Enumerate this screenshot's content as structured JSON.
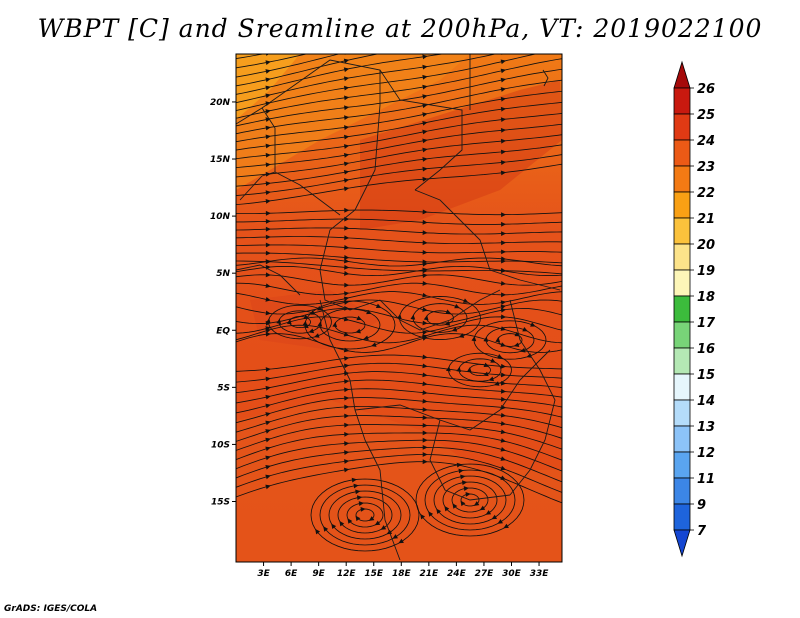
{
  "title": "WBPT [C] and Sreamline at 200hPa, VT: 2019022100",
  "footer": "GrADS: IGES/COLA",
  "map": {
    "lon_range": [
      0,
      35.5
    ],
    "lat_range": [
      -20.3,
      24.2
    ],
    "lon_ticks": [
      {
        "value": 3,
        "label": "3E"
      },
      {
        "value": 6,
        "label": "6E"
      },
      {
        "value": 9,
        "label": "9E"
      },
      {
        "value": 12,
        "label": "12E"
      },
      {
        "value": 15,
        "label": "15E"
      },
      {
        "value": 18,
        "label": "18E"
      },
      {
        "value": 21,
        "label": "21E"
      },
      {
        "value": 24,
        "label": "24E"
      },
      {
        "value": 27,
        "label": "27E"
      },
      {
        "value": 30,
        "label": "30E"
      },
      {
        "value": 33,
        "label": "33E"
      }
    ],
    "lat_ticks": [
      {
        "value": 20,
        "label": "20N"
      },
      {
        "value": 15,
        "label": "15N"
      },
      {
        "value": 10,
        "label": "10N"
      },
      {
        "value": 5,
        "label": "5N"
      },
      {
        "value": 0,
        "label": "EQ"
      },
      {
        "value": -5,
        "label": "5S"
      },
      {
        "value": -10,
        "label": "10S"
      },
      {
        "value": -15,
        "label": "15S"
      }
    ],
    "colors": {
      "background": "#e8541c",
      "streamline": "#111111",
      "border": "#1a1a1a"
    }
  },
  "colorbar": {
    "levels": [
      "26",
      "25",
      "24",
      "23",
      "22",
      "21",
      "20",
      "19",
      "18",
      "17",
      "16",
      "15",
      "14",
      "13",
      "12",
      "11",
      "9",
      "7"
    ],
    "colors": [
      "#a50a0a",
      "#c8190f",
      "#e03a14",
      "#ec5a16",
      "#f37a14",
      "#f9a014",
      "#fbc23c",
      "#fce38a",
      "#fdf6b8",
      "#3cbc3c",
      "#78d478",
      "#b4e8b4",
      "#e6f6fc",
      "#b4dcfa",
      "#8cc3f8",
      "#5aa5f0",
      "#3c86e6",
      "#1e64dc",
      "#1446d2"
    ]
  }
}
